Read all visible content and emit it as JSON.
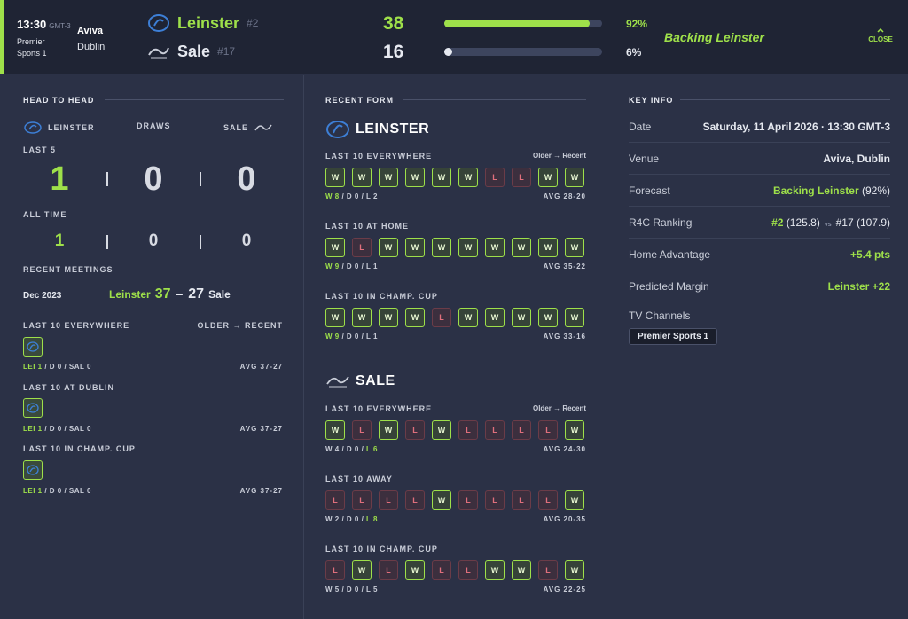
{
  "header": {
    "time": "13:30",
    "timezone": "GMT-3",
    "channel": "Premier Sports 1",
    "venue_name": "Aviva",
    "venue_city": "Dublin",
    "home": {
      "name": "Leinster",
      "rank": "#2",
      "score": "38",
      "pct": "92%",
      "pct_value": 92
    },
    "away": {
      "name": "Sale",
      "rank": "#17",
      "score": "16",
      "pct": "6%",
      "pct_value": 6
    },
    "backing": "Backing Leinster",
    "close_label": "CLOSE",
    "accent_color": "#9ee04a"
  },
  "h2h": {
    "title": "HEAD TO HEAD",
    "home_label": "LEINSTER",
    "draws_label": "DRAWS",
    "away_label": "SALE",
    "last5_label": "LAST 5",
    "last5": {
      "home": "1",
      "draws": "0",
      "away": "0"
    },
    "alltime_label": "ALL TIME",
    "alltime": {
      "home": "1",
      "draws": "0",
      "away": "0"
    },
    "recent_label": "RECENT MEETINGS",
    "meeting": {
      "date": "Dec 2023",
      "home": "Leinster",
      "home_score": "37",
      "dash": "–",
      "away_score": "27",
      "away": "Sale"
    },
    "groups": [
      {
        "label": "LAST 10 EVERYWHERE",
        "older": "OLDER → RECENT",
        "lei": "LEI 1",
        "rest": " / D 0 / SAL 0",
        "avg": "AVG 37-27"
      },
      {
        "label": "LAST 10 AT DUBLIN",
        "lei": "LEI 1",
        "rest": " / D 0 / SAL 0",
        "avg": "AVG 37-27"
      },
      {
        "label": "LAST 10 IN CHAMP. CUP",
        "lei": "LEI 1",
        "rest": " / D 0 / SAL 0",
        "avg": "AVG 37-27"
      }
    ]
  },
  "form": {
    "title": "RECENT FORM",
    "older_label": "Older → Recent",
    "leinster": {
      "name": "LEINSTER",
      "groups": [
        {
          "label": "LAST 10 EVERYWHERE",
          "results": [
            "W",
            "W",
            "W",
            "W",
            "W",
            "W",
            "L",
            "L",
            "W",
            "W"
          ],
          "w": "W 8",
          "d": " / D 0 / ",
          "l": "L 2",
          "avg": "AVG 28-20",
          "hl": "w"
        },
        {
          "label": "LAST 10 AT HOME",
          "results": [
            "W",
            "L",
            "W",
            "W",
            "W",
            "W",
            "W",
            "W",
            "W",
            "W"
          ],
          "w": "W 9",
          "d": " / D 0 / ",
          "l": "L 1",
          "avg": "AVG 35-22",
          "hl": "w"
        },
        {
          "label": "LAST 10 IN CHAMP. CUP",
          "results": [
            "W",
            "W",
            "W",
            "W",
            "L",
            "W",
            "W",
            "W",
            "W",
            "W"
          ],
          "w": "W 9",
          "d": " / D 0 / ",
          "l": "L 1",
          "avg": "AVG 33-16",
          "hl": "w"
        }
      ]
    },
    "sale": {
      "name": "SALE",
      "groups": [
        {
          "label": "LAST 10 EVERYWHERE",
          "results": [
            "W",
            "L",
            "W",
            "L",
            "W",
            "L",
            "L",
            "L",
            "L",
            "W"
          ],
          "w": "W 4",
          "d": " / D 0 / ",
          "l": "L 6",
          "avg": "AVG 24-30",
          "hl": "l"
        },
        {
          "label": "LAST 10 AWAY",
          "results": [
            "L",
            "L",
            "L",
            "L",
            "W",
            "L",
            "L",
            "L",
            "L",
            "W"
          ],
          "w": "W 2",
          "d": " / D 0 / ",
          "l": "L 8",
          "avg": "AVG 20-35",
          "hl": "l"
        },
        {
          "label": "LAST 10 IN CHAMP. CUP",
          "results": [
            "L",
            "W",
            "L",
            "W",
            "L",
            "L",
            "W",
            "W",
            "L",
            "W"
          ],
          "w": "W 5",
          "d": " / D 0 / ",
          "l": "L 5",
          "avg": "AVG 22-25",
          "hl": "none"
        }
      ]
    }
  },
  "keyinfo": {
    "title": "KEY INFO",
    "date_label": "Date",
    "date_value": "Saturday, 11 April 2026 · 13:30 GMT-3",
    "venue_label": "Venue",
    "venue_value": "Aviva, Dublin",
    "forecast_label": "Forecast",
    "forecast_team": "Backing Leinster",
    "forecast_pct": " (92%)",
    "ranking_label": "R4C Ranking",
    "rank_home": "#2",
    "rank_home_pts": " (125.8)",
    "rank_vs": "vs",
    "rank_away": "#17 (107.9)",
    "advantage_label": "Home Advantage",
    "advantage_value": "+5.4 pts",
    "margin_label": "Predicted Margin",
    "margin_value": "Leinster +22",
    "tv_label": "TV Channels",
    "tv_value": "Premier Sports 1"
  }
}
